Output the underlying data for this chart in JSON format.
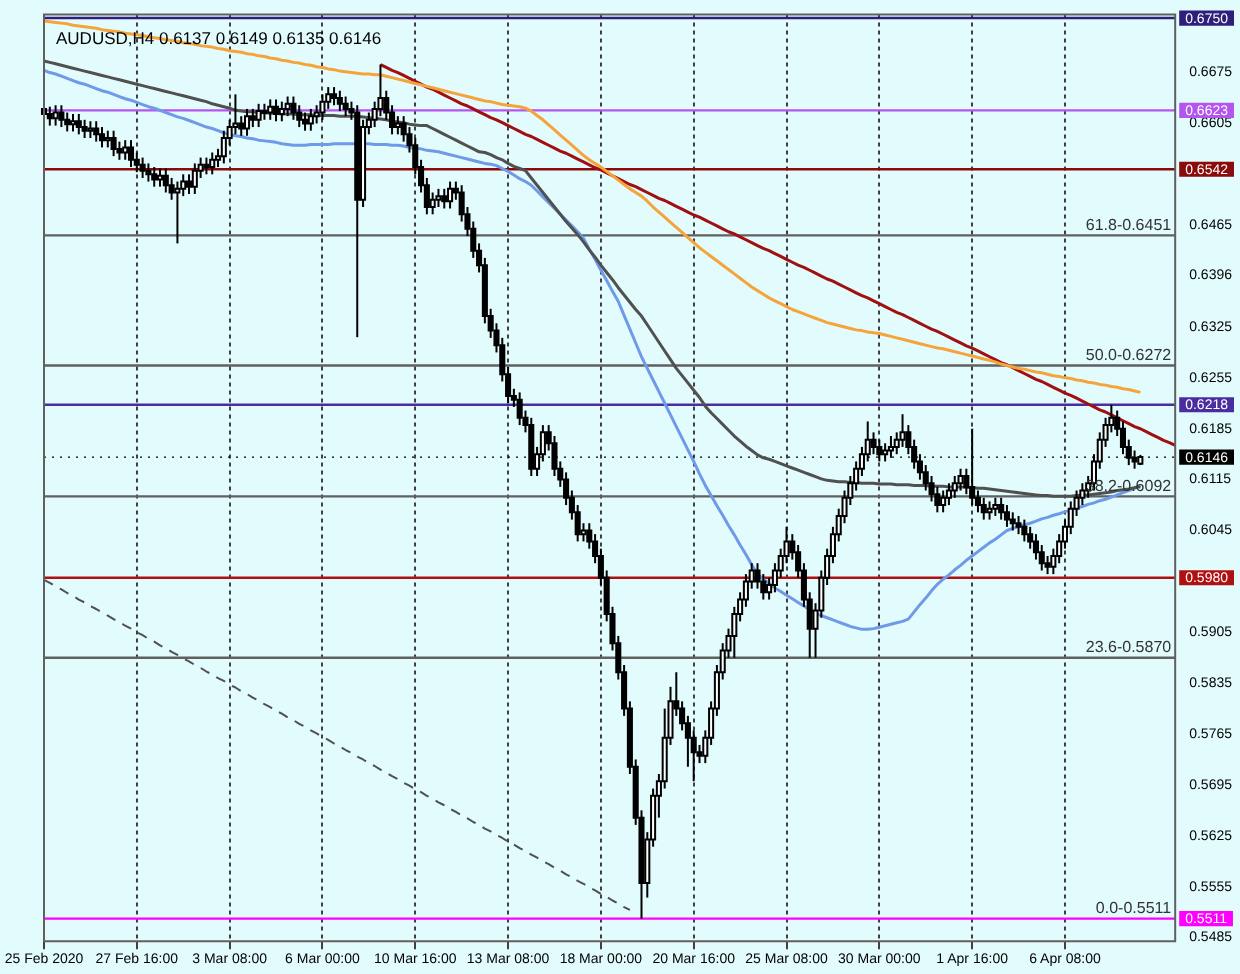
{
  "chart_data": {
    "type": "candlestick",
    "title": "AUDUSD,H4 0.6137 0.6149 0.6135 0.6146",
    "categories": [
      "25 Feb 2020",
      null,
      null,
      null,
      null,
      null,
      null,
      null,
      null,
      null,
      null,
      null,
      null,
      null,
      null,
      null,
      "27 Feb 16:00",
      null,
      null,
      null,
      null,
      null,
      null,
      null,
      null,
      null,
      null,
      null,
      null,
      null,
      null,
      null,
      "3 Mar 08:00",
      null,
      null,
      null,
      null,
      null,
      null,
      null,
      null,
      null,
      null,
      null,
      null,
      null,
      null,
      null,
      "6 Mar 00:00",
      null,
      null,
      null,
      null,
      null,
      null,
      null,
      null,
      null,
      null,
      null,
      null,
      null,
      null,
      null,
      "10 Mar 16:00",
      null,
      null,
      null,
      null,
      null,
      null,
      null,
      null,
      null,
      null,
      null,
      null,
      null,
      null,
      null,
      "13 Mar 08:00",
      null,
      null,
      null,
      null,
      null,
      null,
      null,
      null,
      null,
      null,
      null,
      null,
      null,
      null,
      null,
      "18 Mar 00:00",
      null,
      null,
      null,
      null,
      null,
      null,
      null,
      null,
      null,
      null,
      null,
      null,
      null,
      null,
      null,
      "20 Mar 16:00",
      null,
      null,
      null,
      null,
      null,
      null,
      null,
      null,
      null,
      null,
      null,
      null,
      null,
      null,
      null,
      "25 Mar 08:00",
      null,
      null,
      null,
      null,
      null,
      null,
      null,
      null,
      null,
      null,
      null,
      null,
      null,
      null,
      null,
      "30 Mar 00:00",
      null,
      null,
      null,
      null,
      null,
      null,
      null,
      null,
      null,
      null,
      null,
      null,
      null,
      null,
      null,
      "1 Apr 16:00",
      null,
      null,
      null,
      null,
      null,
      null,
      null,
      null,
      null,
      null,
      null,
      null,
      null,
      null,
      null,
      "6 Apr 08:00",
      null,
      null,
      null,
      null,
      null,
      null,
      null,
      null,
      null,
      null,
      null,
      null,
      null,
      null,
      null,
      null,
      null,
      null,
      null
    ],
    "ohlc": [
      [
        0.6625,
        0.6635,
        0.6608,
        0.6618
      ],
      [
        0.6618,
        0.6628,
        0.6602,
        0.6612
      ],
      [
        0.6612,
        0.663,
        0.6602,
        0.662
      ],
      [
        0.662,
        0.663,
        0.66,
        0.661
      ],
      [
        0.661,
        0.662,
        0.6594,
        0.6604
      ],
      [
        0.6604,
        0.6618,
        0.6594,
        0.6608
      ],
      [
        0.6608,
        0.6618,
        0.659,
        0.66
      ],
      [
        0.66,
        0.661,
        0.6585,
        0.6595
      ],
      [
        0.6595,
        0.6608,
        0.6585,
        0.6598
      ],
      [
        0.6598,
        0.6608,
        0.658,
        0.659
      ],
      [
        0.659,
        0.66,
        0.6572,
        0.6582
      ],
      [
        0.6582,
        0.6595,
        0.6572,
        0.6585
      ],
      [
        0.6585,
        0.6595,
        0.656,
        0.657
      ],
      [
        0.657,
        0.658,
        0.6555,
        0.6565
      ],
      [
        0.6565,
        0.6582,
        0.6555,
        0.6572
      ],
      [
        0.6572,
        0.6582,
        0.6545,
        0.6555
      ],
      [
        0.6555,
        0.6565,
        0.6538,
        0.6548
      ],
      [
        0.6548,
        0.6558,
        0.653,
        0.654
      ],
      [
        0.654,
        0.655,
        0.6525,
        0.6535
      ],
      [
        0.6535,
        0.6545,
        0.6518,
        0.6528
      ],
      [
        0.6528,
        0.6543,
        0.6518,
        0.6533
      ],
      [
        0.6533,
        0.6543,
        0.651,
        0.652
      ],
      [
        0.652,
        0.653,
        0.65,
        0.651
      ],
      [
        0.651,
        0.6525,
        0.644,
        0.6515
      ],
      [
        0.6515,
        0.6535,
        0.6505,
        0.6525
      ],
      [
        0.6525,
        0.6535,
        0.6508,
        0.6518
      ],
      [
        0.6518,
        0.655,
        0.6508,
        0.654
      ],
      [
        0.654,
        0.6558,
        0.653,
        0.6548
      ],
      [
        0.6548,
        0.6558,
        0.6535,
        0.6545
      ],
      [
        0.6545,
        0.6565,
        0.6535,
        0.6555
      ],
      [
        0.6555,
        0.657,
        0.6545,
        0.656
      ],
      [
        0.656,
        0.6595,
        0.655,
        0.6585
      ],
      [
        0.6585,
        0.661,
        0.6575,
        0.66
      ],
      [
        0.66,
        0.6645,
        0.659,
        0.6605
      ],
      [
        0.6605,
        0.6615,
        0.6588,
        0.6598
      ],
      [
        0.6598,
        0.6625,
        0.6588,
        0.6615
      ],
      [
        0.6615,
        0.6625,
        0.66,
        0.661
      ],
      [
        0.661,
        0.6632,
        0.66,
        0.6622
      ],
      [
        0.6622,
        0.6632,
        0.661,
        0.662
      ],
      [
        0.662,
        0.6638,
        0.661,
        0.6628
      ],
      [
        0.6628,
        0.6638,
        0.6608,
        0.6618
      ],
      [
        0.6618,
        0.6635,
        0.6608,
        0.6625
      ],
      [
        0.6625,
        0.6642,
        0.6615,
        0.6632
      ],
      [
        0.6632,
        0.6642,
        0.661,
        0.662
      ],
      [
        0.662,
        0.663,
        0.66,
        0.661
      ],
      [
        0.661,
        0.662,
        0.6595,
        0.6605
      ],
      [
        0.6605,
        0.6625,
        0.6595,
        0.6615
      ],
      [
        0.6615,
        0.663,
        0.6605,
        0.662
      ],
      [
        0.662,
        0.6645,
        0.661,
        0.6635
      ],
      [
        0.6635,
        0.6655,
        0.6625,
        0.6645
      ],
      [
        0.6645,
        0.6655,
        0.663,
        0.664
      ],
      [
        0.664,
        0.665,
        0.6622,
        0.6632
      ],
      [
        0.6632,
        0.6642,
        0.6615,
        0.6625
      ],
      [
        0.6625,
        0.6635,
        0.661,
        0.662
      ],
      [
        0.662,
        0.663,
        0.6311,
        0.65
      ],
      [
        0.65,
        0.661,
        0.649,
        0.66
      ],
      [
        0.66,
        0.662,
        0.659,
        0.661
      ],
      [
        0.661,
        0.6635,
        0.66,
        0.6625
      ],
      [
        0.6625,
        0.6686,
        0.6615,
        0.664
      ],
      [
        0.664,
        0.665,
        0.661,
        0.662
      ],
      [
        0.662,
        0.663,
        0.659,
        0.66
      ],
      [
        0.66,
        0.6615,
        0.659,
        0.6605
      ],
      [
        0.6605,
        0.6615,
        0.658,
        0.659
      ],
      [
        0.659,
        0.66,
        0.6565,
        0.6575
      ],
      [
        0.6575,
        0.6585,
        0.6535,
        0.6545
      ],
      [
        0.6545,
        0.6555,
        0.651,
        0.652
      ],
      [
        0.652,
        0.653,
        0.648,
        0.649
      ],
      [
        0.649,
        0.651,
        0.648,
        0.65
      ],
      [
        0.65,
        0.6515,
        0.649,
        0.6505
      ],
      [
        0.6505,
        0.6515,
        0.6488,
        0.6498
      ],
      [
        0.6498,
        0.6525,
        0.6488,
        0.6515
      ],
      [
        0.6515,
        0.6525,
        0.65,
        0.651
      ],
      [
        0.651,
        0.652,
        0.647,
        0.648
      ],
      [
        0.648,
        0.649,
        0.645,
        0.646
      ],
      [
        0.646,
        0.647,
        0.642,
        0.643
      ],
      [
        0.643,
        0.644,
        0.64,
        0.641
      ],
      [
        0.641,
        0.642,
        0.633,
        0.634
      ],
      [
        0.634,
        0.635,
        0.631,
        0.632
      ],
      [
        0.632,
        0.633,
        0.629,
        0.63
      ],
      [
        0.63,
        0.631,
        0.625,
        0.626
      ],
      [
        0.626,
        0.627,
        0.622,
        0.623
      ],
      [
        0.623,
        0.624,
        0.6215,
        0.6225
      ],
      [
        0.6225,
        0.6235,
        0.619,
        0.62
      ],
      [
        0.62,
        0.621,
        0.618,
        0.619
      ],
      [
        0.619,
        0.62,
        0.612,
        0.613
      ],
      [
        0.613,
        0.616,
        0.612,
        0.615
      ],
      [
        0.615,
        0.619,
        0.614,
        0.618
      ],
      [
        0.618,
        0.619,
        0.6155,
        0.6165
      ],
      [
        0.6165,
        0.6175,
        0.612,
        0.613
      ],
      [
        0.613,
        0.614,
        0.6105,
        0.6115
      ],
      [
        0.6115,
        0.6125,
        0.608,
        0.609
      ],
      [
        0.609,
        0.61,
        0.606,
        0.607
      ],
      [
        0.607,
        0.608,
        0.603,
        0.604
      ],
      [
        0.604,
        0.6055,
        0.603,
        0.6045
      ],
      [
        0.6045,
        0.6055,
        0.602,
        0.603
      ],
      [
        0.603,
        0.604,
        0.6,
        0.601
      ],
      [
        0.601,
        0.602,
        0.597,
        0.598
      ],
      [
        0.598,
        0.599,
        0.592,
        0.593
      ],
      [
        0.593,
        0.594,
        0.588,
        0.589
      ],
      [
        0.589,
        0.59,
        0.584,
        0.585
      ],
      [
        0.585,
        0.586,
        0.579,
        0.58
      ],
      [
        0.58,
        0.581,
        0.571,
        0.572
      ],
      [
        0.572,
        0.573,
        0.564,
        0.565
      ],
      [
        0.565,
        0.566,
        0.5511,
        0.556
      ],
      [
        0.556,
        0.563,
        0.554,
        0.562
      ],
      [
        0.562,
        0.569,
        0.561,
        0.568
      ],
      [
        0.568,
        0.571,
        0.565,
        0.57
      ],
      [
        0.57,
        0.58,
        0.569,
        0.576
      ],
      [
        0.576,
        0.583,
        0.575,
        0.581
      ],
      [
        0.581,
        0.585,
        0.579,
        0.58
      ],
      [
        0.58,
        0.581,
        0.577,
        0.578
      ],
      [
        0.578,
        0.579,
        0.572,
        0.576
      ],
      [
        0.576,
        0.577,
        0.57,
        0.574
      ],
      [
        0.574,
        0.575,
        0.5725,
        0.5735
      ],
      [
        0.5735,
        0.577,
        0.5725,
        0.576
      ],
      [
        0.576,
        0.581,
        0.575,
        0.58
      ],
      [
        0.58,
        0.586,
        0.579,
        0.585
      ],
      [
        0.585,
        0.589,
        0.584,
        0.588
      ],
      [
        0.588,
        0.591,
        0.587,
        0.59
      ],
      [
        0.59,
        0.594,
        0.587,
        0.593
      ],
      [
        0.593,
        0.596,
        0.592,
        0.595
      ],
      [
        0.595,
        0.5985,
        0.594,
        0.5975
      ],
      [
        0.5975,
        0.6,
        0.5965,
        0.599
      ],
      [
        0.599,
        0.6,
        0.5965,
        0.5975
      ],
      [
        0.5975,
        0.5985,
        0.595,
        0.596
      ],
      [
        0.596,
        0.598,
        0.595,
        0.597
      ],
      [
        0.597,
        0.6,
        0.596,
        0.599
      ],
      [
        0.599,
        0.602,
        0.598,
        0.601
      ],
      [
        0.601,
        0.605,
        0.6,
        0.603
      ],
      [
        0.603,
        0.604,
        0.6005,
        0.6015
      ],
      [
        0.6015,
        0.6025,
        0.598,
        0.599
      ],
      [
        0.599,
        0.6,
        0.594,
        0.595
      ],
      [
        0.595,
        0.596,
        0.587,
        0.591
      ],
      [
        0.591,
        0.5945,
        0.587,
        0.5935
      ],
      [
        0.5935,
        0.599,
        0.5925,
        0.598
      ],
      [
        0.598,
        0.602,
        0.597,
        0.601
      ],
      [
        0.601,
        0.605,
        0.6,
        0.604
      ],
      [
        0.604,
        0.6075,
        0.603,
        0.6065
      ],
      [
        0.6065,
        0.61,
        0.6055,
        0.609
      ],
      [
        0.609,
        0.612,
        0.608,
        0.611
      ],
      [
        0.611,
        0.614,
        0.61,
        0.613
      ],
      [
        0.613,
        0.616,
        0.612,
        0.615
      ],
      [
        0.615,
        0.6195,
        0.614,
        0.617
      ],
      [
        0.617,
        0.618,
        0.615,
        0.616
      ],
      [
        0.616,
        0.617,
        0.614,
        0.615
      ],
      [
        0.615,
        0.6165,
        0.614,
        0.6155
      ],
      [
        0.6155,
        0.6175,
        0.6145,
        0.616
      ],
      [
        0.616,
        0.618,
        0.615,
        0.617
      ],
      [
        0.617,
        0.6205,
        0.616,
        0.618
      ],
      [
        0.618,
        0.619,
        0.615,
        0.616
      ],
      [
        0.616,
        0.617,
        0.613,
        0.614
      ],
      [
        0.614,
        0.615,
        0.6115,
        0.6125
      ],
      [
        0.6125,
        0.6135,
        0.61,
        0.611
      ],
      [
        0.611,
        0.612,
        0.6085,
        0.6095
      ],
      [
        0.6095,
        0.6105,
        0.607,
        0.608
      ],
      [
        0.608,
        0.61,
        0.607,
        0.609
      ],
      [
        0.609,
        0.611,
        0.608,
        0.61
      ],
      [
        0.61,
        0.612,
        0.609,
        0.611
      ],
      [
        0.611,
        0.613,
        0.61,
        0.612
      ],
      [
        0.612,
        0.613,
        0.6095,
        0.6105
      ],
      [
        0.6105,
        0.6185,
        0.608,
        0.609
      ],
      [
        0.609,
        0.61,
        0.607,
        0.608
      ],
      [
        0.608,
        0.609,
        0.606,
        0.607
      ],
      [
        0.607,
        0.6085,
        0.606,
        0.6075
      ],
      [
        0.6075,
        0.609,
        0.6065,
        0.608
      ],
      [
        0.608,
        0.609,
        0.606,
        0.607
      ],
      [
        0.607,
        0.608,
        0.605,
        0.606
      ],
      [
        0.606,
        0.607,
        0.6045,
        0.6055
      ],
      [
        0.6055,
        0.6065,
        0.604,
        0.605
      ],
      [
        0.605,
        0.606,
        0.603,
        0.604
      ],
      [
        0.604,
        0.605,
        0.602,
        0.603
      ],
      [
        0.603,
        0.604,
        0.6005,
        0.6015
      ],
      [
        0.6015,
        0.6025,
        0.599,
        0.6
      ],
      [
        0.6,
        0.601,
        0.5985,
        0.5995
      ],
      [
        0.5995,
        0.602,
        0.5985,
        0.601
      ],
      [
        0.601,
        0.604,
        0.6,
        0.603
      ],
      [
        0.603,
        0.606,
        0.602,
        0.605
      ],
      [
        0.605,
        0.6085,
        0.604,
        0.6075
      ],
      [
        0.6075,
        0.61,
        0.6065,
        0.609
      ],
      [
        0.609,
        0.611,
        0.608,
        0.61
      ],
      [
        0.61,
        0.612,
        0.609,
        0.611
      ],
      [
        0.611,
        0.615,
        0.61,
        0.614
      ],
      [
        0.614,
        0.618,
        0.613,
        0.617
      ],
      [
        0.617,
        0.62,
        0.616,
        0.619
      ],
      [
        0.619,
        0.6218,
        0.618,
        0.62
      ],
      [
        0.62,
        0.621,
        0.6175,
        0.6185
      ],
      [
        0.6185,
        0.6195,
        0.615,
        0.616
      ],
      [
        0.616,
        0.617,
        0.6135,
        0.6145
      ],
      [
        0.6145,
        0.6155,
        0.613,
        0.614
      ],
      [
        0.6137,
        0.6149,
        0.6135,
        0.6146
      ],
      null,
      null,
      null,
      null,
      null,
      null
    ],
    "series": [
      {
        "type": "line",
        "color": "#f5a43a",
        "values": [
          0.6746,
          0.6745,
          0.6744,
          0.6743,
          0.6742,
          0.674,
          0.6739,
          0.6738,
          0.6737,
          0.6736,
          0.6734,
          0.6733,
          0.6732,
          0.6731,
          0.6729,
          0.6728,
          0.6727,
          0.6726,
          0.6724,
          0.6723,
          0.6722,
          0.672,
          0.6719,
          0.6718,
          0.6716,
          0.6715,
          0.6714,
          0.6712,
          0.6711,
          0.671,
          0.6708,
          0.6707,
          0.6705,
          0.6704,
          0.6703,
          0.6701,
          0.67,
          0.6698,
          0.6697,
          0.6695,
          0.6694,
          0.6692,
          0.6691,
          0.6689,
          0.6688,
          0.6686,
          0.6685,
          0.6683,
          0.6682,
          0.668,
          0.6679,
          0.6677,
          0.6676,
          0.6675,
          0.6674,
          0.6673,
          0.6673,
          0.6672,
          0.6672,
          0.667,
          0.6668,
          0.6666,
          0.6664,
          0.6662,
          0.666,
          0.6658,
          0.6656,
          0.6654,
          0.6652,
          0.665,
          0.6648,
          0.6646,
          0.6644,
          0.6642,
          0.664,
          0.6638,
          0.6636,
          0.6635,
          0.6633,
          0.6631,
          0.663,
          0.6629,
          0.6628,
          0.6626,
          0.6622,
          0.6616,
          0.661,
          0.6603,
          0.6596,
          0.6589,
          0.6582,
          0.6575,
          0.6568,
          0.6561,
          0.6555,
          0.655,
          0.6545,
          0.6539,
          0.6533,
          0.6527,
          0.6521,
          0.6515,
          0.651,
          0.6505,
          0.6498,
          0.649,
          0.6483,
          0.6476,
          0.6469,
          0.6462,
          0.6455,
          0.6448,
          0.6441,
          0.6434,
          0.6428,
          0.6422,
          0.6416,
          0.641,
          0.6404,
          0.6398,
          0.6392,
          0.6386,
          0.638,
          0.6375,
          0.637,
          0.6365,
          0.6361,
          0.6357,
          0.6353,
          0.6349,
          0.6346,
          0.6343,
          0.634,
          0.6337,
          0.6334,
          0.6331,
          0.6329,
          0.6327,
          0.6325,
          0.6323,
          0.6321,
          0.632,
          0.6318,
          0.6317,
          0.6316,
          0.6314,
          0.6312,
          0.631,
          0.6308,
          0.6306,
          0.6304,
          0.6302,
          0.63,
          0.6298,
          0.6296,
          0.6295,
          0.6293,
          0.6291,
          0.6289,
          0.6287,
          0.6285,
          0.6283,
          0.6281,
          0.6279,
          0.6277,
          0.6274,
          0.6272,
          0.627,
          0.6268,
          0.6267,
          0.6265,
          0.6263,
          0.6262,
          0.626,
          0.6258,
          0.6257,
          0.6255,
          0.6254,
          0.6252,
          0.6251,
          0.6249,
          0.6248,
          0.6246,
          0.6245,
          0.6243,
          0.6242,
          0.624,
          0.6239,
          0.6237,
          0.6235,
          null,
          null,
          null,
          null,
          null,
          null
        ]
      },
      {
        "type": "line",
        "color": "#505050",
        "values": [
          0.6691,
          0.6689,
          0.6687,
          0.6685,
          0.6683,
          0.6681,
          0.6679,
          0.6677,
          0.6675,
          0.6673,
          0.6671,
          0.6669,
          0.6667,
          0.6665,
          0.6663,
          0.6661,
          0.6659,
          0.6657,
          0.6655,
          0.6653,
          0.6651,
          0.6649,
          0.6647,
          0.6645,
          0.6643,
          0.6641,
          0.6639,
          0.6637,
          0.6635,
          0.6632,
          0.663,
          0.6628,
          0.6626,
          0.6623,
          0.6622,
          0.6621,
          0.6621,
          0.662,
          0.662,
          0.6619,
          0.6619,
          0.6618,
          0.6618,
          0.6618,
          0.6617,
          0.6617,
          0.6617,
          0.6616,
          0.6616,
          0.6616,
          0.6616,
          0.6615,
          0.6615,
          0.6615,
          0.6615,
          0.6614,
          0.6613,
          0.6612,
          0.6611,
          0.661,
          0.6608,
          0.6607,
          0.6606,
          0.6604,
          0.6603,
          0.6602,
          0.6602,
          0.6598,
          0.6594,
          0.659,
          0.6586,
          0.6582,
          0.6578,
          0.6574,
          0.657,
          0.6566,
          0.6565,
          0.6562,
          0.6558,
          0.6555,
          0.655,
          0.6546,
          0.6543,
          0.654,
          0.653,
          0.652,
          0.651,
          0.65,
          0.649,
          0.648,
          0.647,
          0.6461,
          0.6452,
          0.6442,
          0.6431,
          0.6421,
          0.641,
          0.64,
          0.639,
          0.6379,
          0.6369,
          0.6359,
          0.6349,
          0.634,
          0.6328,
          0.6316,
          0.6304,
          0.6292,
          0.628,
          0.6268,
          0.6258,
          0.6248,
          0.6238,
          0.6228,
          0.6216,
          0.6207,
          0.6199,
          0.6191,
          0.6183,
          0.6175,
          0.6168,
          0.6161,
          0.6155,
          0.6149,
          0.6145,
          0.6143,
          0.614,
          0.6137,
          0.6134,
          0.6131,
          0.6128,
          0.6125,
          0.6122,
          0.6119,
          0.6116,
          0.6114,
          0.6113,
          0.6112,
          0.6112,
          0.6111,
          0.6111,
          0.611,
          0.611,
          0.611,
          0.6109,
          0.6109,
          0.6109,
          0.6108,
          0.6108,
          0.6108,
          0.6107,
          0.6107,
          0.6107,
          0.6106,
          0.6106,
          0.6106,
          0.6105,
          0.6105,
          0.6105,
          0.6104,
          0.6104,
          0.6103,
          0.6103,
          0.6102,
          0.6101,
          0.61,
          0.6099,
          0.6098,
          0.6097,
          0.6096,
          0.6095,
          0.6094,
          0.6093,
          0.6093,
          0.6092,
          0.6092,
          0.6092,
          0.6092,
          0.6093,
          0.6093,
          0.6094,
          0.6095,
          0.6096,
          0.6097,
          0.6098,
          0.61,
          0.6101,
          0.6102,
          0.6104,
          0.6105,
          null,
          null,
          null,
          null,
          null,
          null
        ]
      },
      {
        "type": "line",
        "color": "#6f9ae8",
        "values": [
          0.6678,
          0.6675,
          0.6673,
          0.667,
          0.6667,
          0.6664,
          0.6661,
          0.6659,
          0.6656,
          0.6653,
          0.665,
          0.6648,
          0.6645,
          0.6642,
          0.6639,
          0.6637,
          0.6634,
          0.6631,
          0.6628,
          0.6626,
          0.6623,
          0.662,
          0.6617,
          0.6614,
          0.6612,
          0.6609,
          0.6606,
          0.6603,
          0.66,
          0.6598,
          0.6595,
          0.6592,
          0.659,
          0.6588,
          0.6587,
          0.6585,
          0.6584,
          0.6582,
          0.6581,
          0.658,
          0.6579,
          0.6577,
          0.6576,
          0.6575,
          0.6575,
          0.6575,
          0.6576,
          0.6576,
          0.6576,
          0.6576,
          0.6577,
          0.6577,
          0.6577,
          0.6577,
          0.6577,
          0.6577,
          0.6577,
          0.6576,
          0.6576,
          0.6576,
          0.6575,
          0.6575,
          0.6574,
          0.6572,
          0.6571,
          0.657,
          0.6568,
          0.6567,
          0.6566,
          0.6564,
          0.6562,
          0.656,
          0.6558,
          0.6556,
          0.6554,
          0.6552,
          0.655,
          0.6549,
          0.6547,
          0.6543,
          0.6539,
          0.6534,
          0.6529,
          0.6525,
          0.652,
          0.6512,
          0.6504,
          0.6496,
          0.6488,
          0.648,
          0.6472,
          0.6464,
          0.6456,
          0.6447,
          0.6432,
          0.6418,
          0.6403,
          0.6389,
          0.6374,
          0.636,
          0.6341,
          0.6322,
          0.6303,
          0.6284,
          0.6268,
          0.6252,
          0.6236,
          0.622,
          0.6204,
          0.6188,
          0.6172,
          0.6156,
          0.614,
          0.6123,
          0.6107,
          0.6093,
          0.6079,
          0.6066,
          0.6052,
          0.6039,
          0.6025,
          0.6012,
          0.5998,
          0.5985,
          0.5978,
          0.5972,
          0.5966,
          0.5961,
          0.5956,
          0.5951,
          0.5946,
          0.5941,
          0.5936,
          0.5931,
          0.5928,
          0.5925,
          0.5922,
          0.5919,
          0.5916,
          0.5913,
          0.5911,
          0.5909,
          0.5909,
          0.591,
          0.5912,
          0.5914,
          0.5916,
          0.5918,
          0.592,
          0.5923,
          0.5933,
          0.5943,
          0.5952,
          0.5962,
          0.5971,
          0.5978,
          0.5984,
          0.5991,
          0.5997,
          0.6004,
          0.601,
          0.6016,
          0.6022,
          0.6028,
          0.6033,
          0.6039,
          0.6045,
          0.6048,
          0.605,
          0.6053,
          0.6055,
          0.6058,
          0.6061,
          0.6063,
          0.6066,
          0.6068,
          0.6071,
          0.6073,
          0.6076,
          0.6078,
          0.6081,
          0.6083,
          0.6086,
          0.6088,
          0.6091,
          0.6094,
          0.6097,
          0.61,
          0.6103,
          0.6107,
          null,
          null,
          null,
          null,
          null,
          null
        ]
      },
      {
        "type": "line",
        "color": "#a01010",
        "values": [
          null,
          null,
          null,
          null,
          null,
          null,
          null,
          null,
          null,
          null,
          null,
          null,
          null,
          null,
          null,
          null,
          null,
          null,
          null,
          null,
          null,
          null,
          null,
          null,
          null,
          null,
          null,
          null,
          null,
          null,
          null,
          null,
          null,
          null,
          null,
          null,
          null,
          null,
          null,
          null,
          null,
          null,
          null,
          null,
          null,
          null,
          null,
          null,
          null,
          null,
          null,
          null,
          null,
          null,
          null,
          null,
          null,
          null,
          0.6686,
          0.6682,
          0.6678,
          0.6675,
          0.6671,
          0.6667,
          0.6663,
          0.6659,
          0.6655,
          0.6652,
          0.6648,
          0.6644,
          0.664,
          0.6636,
          0.6632,
          0.6629,
          0.6625,
          0.6621,
          0.6617,
          0.6613,
          0.661,
          0.6606,
          0.6602,
          0.6598,
          0.6594,
          0.659,
          0.6587,
          0.6583,
          0.6579,
          0.6575,
          0.6571,
          0.6567,
          0.6564,
          0.656,
          0.6556,
          0.6552,
          0.6548,
          0.6544,
          0.6541,
          0.6537,
          0.6533,
          0.6529,
          0.6525,
          0.6521,
          0.6518,
          0.6514,
          0.651,
          0.6506,
          0.6502,
          0.6499,
          0.6495,
          0.6491,
          0.6487,
          0.6483,
          0.6479,
          0.6476,
          0.6472,
          0.6468,
          0.6464,
          0.646,
          0.6456,
          0.6453,
          0.6449,
          0.6445,
          0.6441,
          0.6437,
          0.6433,
          0.643,
          0.6426,
          0.6422,
          0.6418,
          0.6414,
          0.641,
          0.6407,
          0.6403,
          0.6399,
          0.6395,
          0.6391,
          0.6388,
          0.6384,
          0.638,
          0.6376,
          0.6372,
          0.6368,
          0.6365,
          0.6361,
          0.6357,
          0.6353,
          0.6349,
          0.6345,
          0.6342,
          0.6338,
          0.6334,
          0.633,
          0.6326,
          0.6322,
          0.6319,
          0.6315,
          0.6311,
          0.6307,
          0.6303,
          0.6299,
          0.6296,
          0.6292,
          0.6288,
          0.6284,
          0.628,
          0.6276,
          0.6273,
          0.6269,
          0.6265,
          0.6261,
          0.6257,
          0.6253,
          0.625,
          0.6246,
          0.6242,
          0.6238,
          0.6234,
          0.6231,
          0.6227,
          0.6223,
          0.6219,
          0.6215,
          0.6211,
          0.6208,
          0.6204,
          0.62,
          0.6196,
          0.6192,
          0.6188,
          0.6185,
          0.6181,
          0.6177,
          0.6173,
          0.6169,
          0.6166,
          0.6162
        ]
      },
      {
        "type": "line",
        "color": "#505050",
        "line_style": "dashed",
        "values": [
          0.5977,
          0.5973,
          0.5968,
          0.5964,
          0.5959,
          0.5955,
          0.595,
          0.5946,
          0.5941,
          0.5937,
          0.5932,
          0.5928,
          0.5923,
          0.5919,
          0.5914,
          0.591,
          0.5905,
          0.5901,
          0.5896,
          0.5892,
          0.5887,
          0.5883,
          0.5878,
          0.5874,
          0.5869,
          0.5865,
          0.586,
          0.5856,
          0.5851,
          0.5847,
          0.5842,
          0.5838,
          0.5833,
          0.5829,
          0.5824,
          0.582,
          0.5815,
          0.5811,
          0.5806,
          0.5802,
          0.5797,
          0.5793,
          0.5788,
          0.5784,
          0.5779,
          0.5775,
          0.577,
          0.5766,
          0.5761,
          0.5757,
          0.5752,
          0.5748,
          0.5743,
          0.5739,
          0.5734,
          0.573,
          0.5725,
          0.5721,
          0.5716,
          0.5712,
          0.5707,
          0.5703,
          0.5698,
          0.5694,
          0.5689,
          0.5685,
          0.568,
          0.5676,
          0.5671,
          0.5667,
          0.5662,
          0.5658,
          0.5653,
          0.5649,
          0.5644,
          0.564,
          0.5635,
          0.5631,
          0.5626,
          0.5622,
          0.5617,
          0.5613,
          0.5608,
          0.5604,
          0.5599,
          0.5595,
          0.559,
          0.5586,
          0.5581,
          0.5577,
          0.5572,
          0.5568,
          0.5563,
          0.5559,
          0.5554,
          0.555,
          0.5545,
          0.5541,
          0.5536,
          0.5532,
          0.5527,
          0.5523,
          null,
          null,
          null,
          null,
          null,
          null,
          null,
          null,
          null,
          null,
          null,
          null,
          null,
          null,
          null,
          null,
          null,
          null,
          null,
          null,
          null,
          null,
          null,
          null,
          null,
          null,
          null,
          null,
          null,
          null,
          null,
          null,
          null,
          null,
          null,
          null,
          null,
          null,
          null,
          null,
          null,
          null,
          null,
          null,
          null,
          null,
          null,
          null,
          null,
          null,
          null,
          null,
          null,
          null,
          null,
          null,
          null,
          null,
          null,
          null,
          null,
          null,
          null,
          null,
          null,
          null,
          null,
          null,
          null,
          null,
          null,
          null,
          null,
          null,
          null,
          null,
          null,
          null,
          null,
          null,
          null,
          null,
          null,
          null,
          null,
          null,
          null,
          null,
          null,
          null,
          null,
          null,
          null,
          null
        ]
      }
    ],
    "ylim": [
      0.548,
      0.6755
    ],
    "yticks": [
      0.6675,
      0.6605,
      0.6465,
      0.6396,
      0.6325,
      0.6255,
      0.6185,
      0.6115,
      0.6045,
      0.5905,
      0.5835,
      0.5765,
      0.5695,
      0.5625,
      0.5555,
      0.5485
    ],
    "grid": "x",
    "ref_lines": [
      {
        "axis": "y",
        "value": 0.675,
        "label": "0.6750",
        "color": "#2e1f7a"
      },
      {
        "axis": "y",
        "value": 0.6623,
        "label": "0.6623",
        "color": "#b455f0"
      },
      {
        "axis": "y",
        "value": 0.6542,
        "label": "0.6542",
        "color": "#8b0a0a"
      },
      {
        "axis": "y",
        "value": 0.6451,
        "color": "#606060"
      },
      {
        "axis": "y",
        "value": 0.6272,
        "color": "#606060"
      },
      {
        "axis": "y",
        "value": 0.6218,
        "label": "0.6218",
        "color": "#4a2ea0"
      },
      {
        "axis": "y",
        "value": 0.6146,
        "label": "0.6146",
        "color": "#000000",
        "line_style": "dotted"
      },
      {
        "axis": "y",
        "value": 0.6092,
        "color": "#606060"
      },
      {
        "axis": "y",
        "value": 0.598,
        "label": "0.5980",
        "color": "#b01010"
      },
      {
        "axis": "y",
        "value": 0.587,
        "color": "#606060"
      },
      {
        "axis": "y",
        "value": 0.5511,
        "label": "0.5511",
        "color": "#ff00ff"
      }
    ],
    "annotations": [
      {
        "text": "61.8-0.6451",
        "y": 0.6451
      },
      {
        "text": "50.0-0.6272",
        "y": 0.6272
      },
      {
        "text": "38.2-0.6092",
        "y": 0.6092
      },
      {
        "text": "23.6-0.5870",
        "y": 0.587
      },
      {
        "text": "0.0-0.5511",
        "y": 0.5511
      }
    ]
  }
}
